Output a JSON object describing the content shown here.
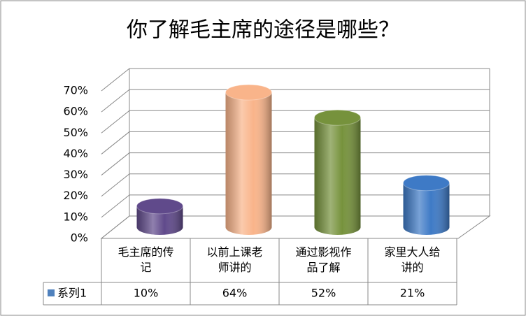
{
  "chart_data": {
    "type": "bar",
    "title": "你了解毛主席的途径是哪些？",
    "categories": [
      "毛主席的传记",
      "以前上课老师讲的",
      "通过影视作品了解",
      "家里大人给讲的"
    ],
    "series": [
      {
        "name": "系列1",
        "color": "#4f81bd",
        "values": [
          10,
          64,
          52,
          21
        ],
        "value_labels": [
          "10%",
          "64%",
          "52%",
          "21%"
        ],
        "colors": [
          "#604a8b",
          "#f9b48a",
          "#76923c",
          "#3e7ac6"
        ]
      }
    ],
    "ylim": [
      0,
      70
    ],
    "yticks": [
      {
        "value": 0,
        "label": "0%"
      },
      {
        "value": 10,
        "label": "10%"
      },
      {
        "value": 20,
        "label": "20%"
      },
      {
        "value": 30,
        "label": "30%"
      },
      {
        "value": 40,
        "label": "40%"
      },
      {
        "value": 50,
        "label": "50%"
      },
      {
        "value": 60,
        "label": "60%"
      },
      {
        "value": 70,
        "label": "70%"
      }
    ],
    "grid": true
  }
}
